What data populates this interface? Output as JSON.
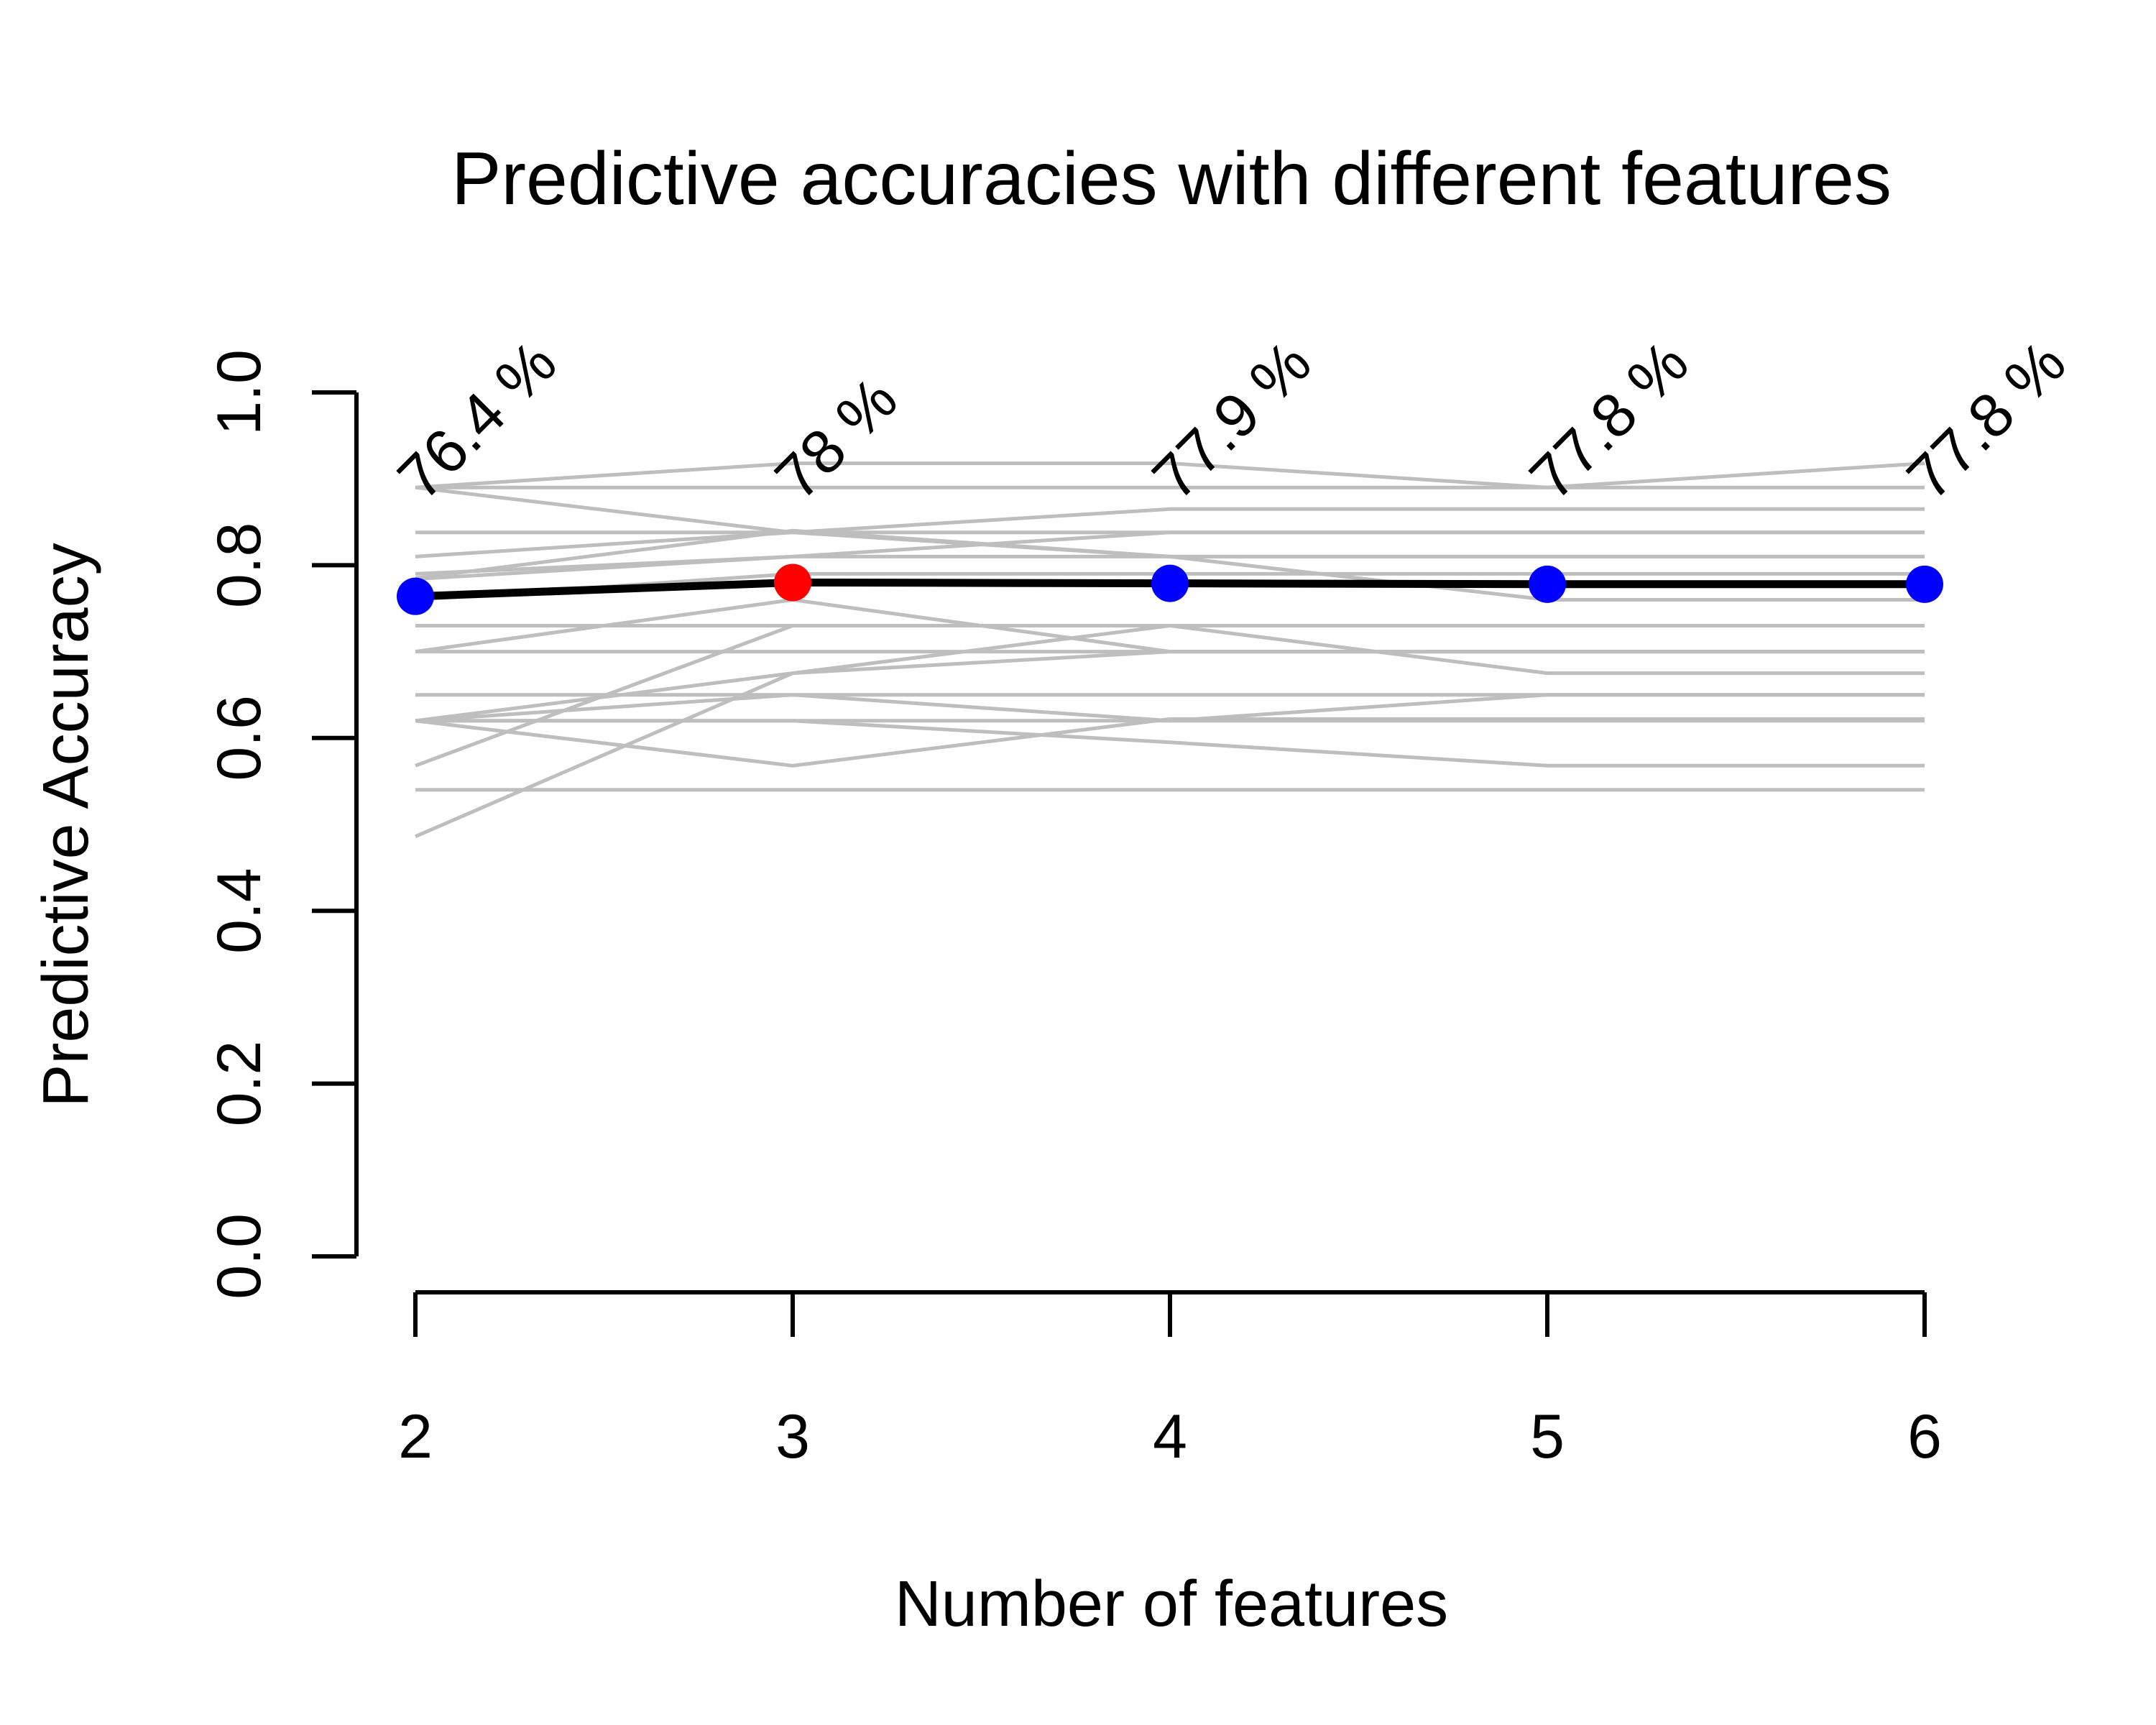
{
  "chart_data": {
    "type": "line",
    "title": "Predictive accuracies with different features",
    "xlabel": "Number of features",
    "ylabel": "Predictive Accuracy",
    "x": [
      2,
      3,
      4,
      5,
      6
    ],
    "x_tick_labels": [
      "2",
      "3",
      "4",
      "5",
      "6"
    ],
    "ylim": [
      0,
      1
    ],
    "y_ticks": [
      0.0,
      0.2,
      0.4,
      0.6,
      0.8,
      1.0
    ],
    "y_tick_labels": [
      "0.0",
      "0.2",
      "0.4",
      "0.6",
      "0.8",
      "1.0"
    ],
    "grid": false,
    "legend": "none",
    "mean_series": {
      "values": [
        0.764,
        0.78,
        0.779,
        0.778,
        0.778
      ],
      "labels": [
        "76.4 %",
        "78 %",
        "77.9 %",
        "77.8 %",
        "77.8 %"
      ],
      "best_index": 1
    },
    "background_series": [
      {
        "values": [
          0.89,
          0.918,
          0.918,
          0.89,
          0.918
        ]
      },
      {
        "values": [
          0.89,
          0.89,
          0.89,
          0.89,
          0.89
        ]
      },
      {
        "values": [
          0.838,
          0.838,
          0.838,
          0.838,
          0.838
        ]
      },
      {
        "values": [
          0.81,
          0.838,
          0.865,
          0.865,
          0.865
        ]
      },
      {
        "values": [
          0.79,
          0.81,
          0.838,
          0.838,
          0.838
        ]
      },
      {
        "values": [
          0.785,
          0.84,
          0.81,
          0.81,
          0.81
        ]
      },
      {
        "values": [
          0.784,
          0.81,
          0.81,
          0.81,
          0.81
        ]
      },
      {
        "values": [
          0.76,
          0.79,
          0.79,
          0.79,
          0.79
        ]
      },
      {
        "values": [
          0.73,
          0.73,
          0.73,
          0.73,
          0.73
        ]
      },
      {
        "values": [
          0.7,
          0.76,
          0.7,
          0.7,
          0.7
        ]
      },
      {
        "values": [
          0.7,
          0.7,
          0.7,
          0.7,
          0.7
        ]
      },
      {
        "values": [
          0.65,
          0.65,
          0.65,
          0.65,
          0.65
        ]
      },
      {
        "values": [
          0.62,
          0.65,
          0.62,
          0.65,
          0.65
        ]
      },
      {
        "values": [
          0.62,
          0.675,
          0.73,
          0.73,
          0.73
        ]
      },
      {
        "values": [
          0.62,
          0.62,
          0.62,
          0.62,
          0.62
        ]
      },
      {
        "values": [
          0.62,
          0.568,
          0.622,
          0.622,
          0.622
        ]
      },
      {
        "values": [
          0.568,
          0.73,
          0.73,
          0.675,
          0.675
        ]
      },
      {
        "values": [
          0.54,
          0.54,
          0.54,
          0.54,
          0.54
        ]
      },
      {
        "values": [
          0.486,
          0.675,
          0.7,
          0.7,
          0.7
        ]
      },
      {
        "values": [
          0.62,
          0.62,
          0.595,
          0.568,
          0.568
        ]
      },
      {
        "values": [
          0.89,
          0.838,
          0.81,
          0.76,
          0.76
        ]
      }
    ],
    "colors": {
      "mean_line": "#000000",
      "background_lines": "#bebebe",
      "point": "#0000ff",
      "best_point": "#ff0000"
    }
  }
}
